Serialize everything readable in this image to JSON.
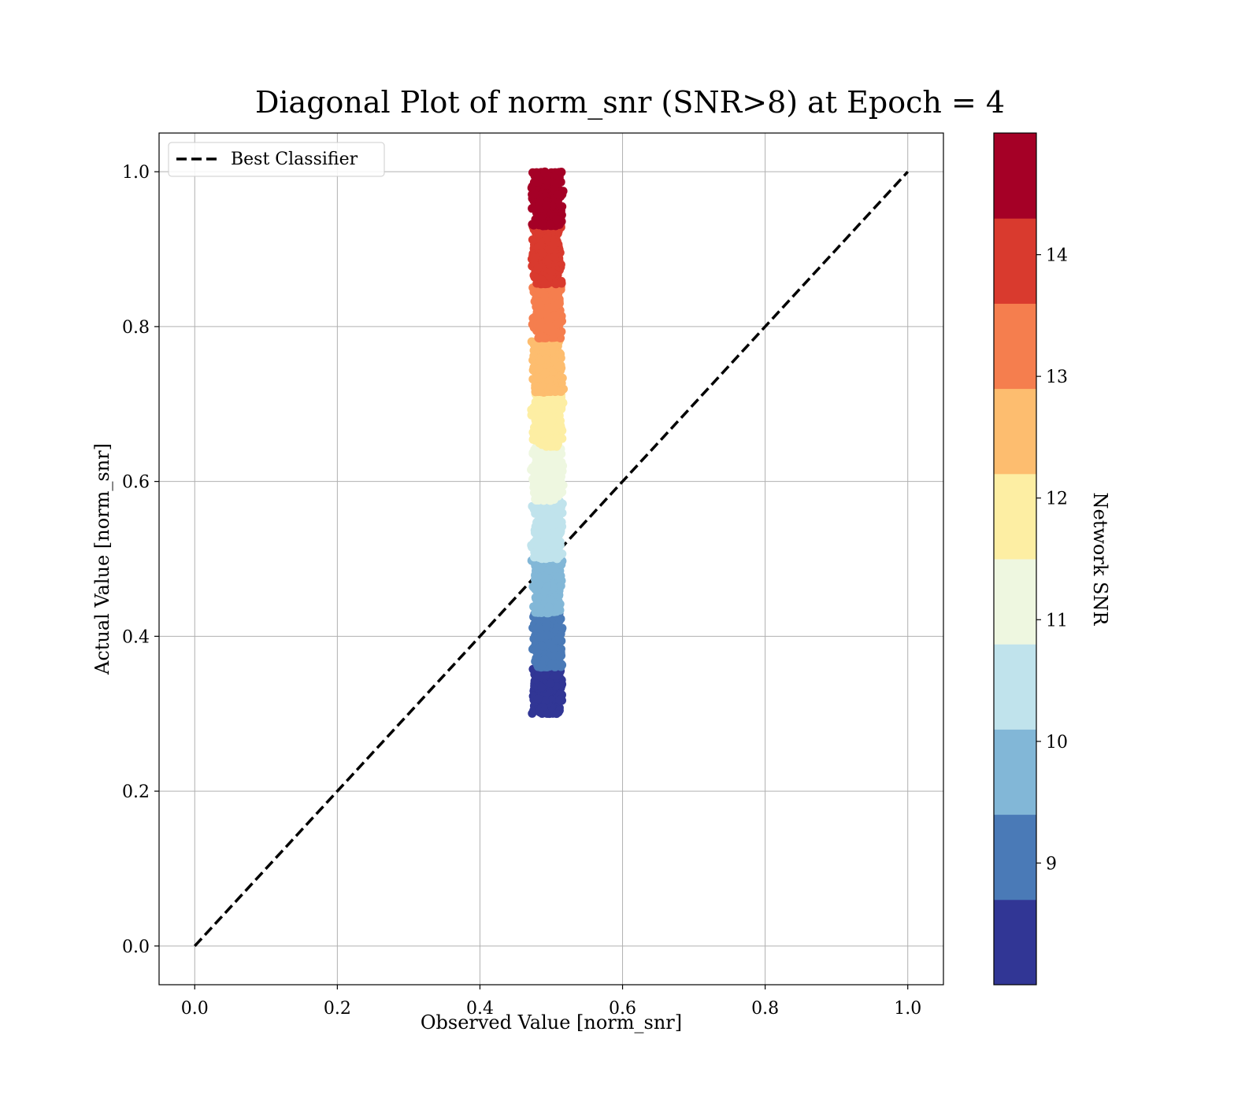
{
  "chart_data": {
    "type": "scatter",
    "title": "Diagonal Plot of norm_snr (SNR>8) at Epoch = 4",
    "xlabel": "Observed Value [norm_snr]",
    "ylabel": "Actual Value [norm_snr]",
    "xlim": [
      -0.05,
      1.05
    ],
    "ylim": [
      -0.05,
      1.05
    ],
    "xticks": [
      0.0,
      0.2,
      0.4,
      0.6,
      0.8,
      1.0
    ],
    "yticks": [
      0.0,
      0.2,
      0.4,
      0.6,
      0.8,
      1.0
    ],
    "xtick_labels": [
      "0.0",
      "0.2",
      "0.4",
      "0.6",
      "0.8",
      "1.0"
    ],
    "ytick_labels": [
      "0.0",
      "0.2",
      "0.4",
      "0.6",
      "0.8",
      "1.0"
    ],
    "grid": true,
    "legend": {
      "position": "upper-left",
      "entries": [
        {
          "label": "Best Classifier",
          "style": "dashed",
          "color": "#000000"
        }
      ]
    },
    "reference_line": {
      "x": [
        0.0,
        1.0
      ],
      "y": [
        0.0,
        1.0
      ],
      "style": "dashed",
      "color": "#000000"
    },
    "colorbar": {
      "label": "Network SNR",
      "range": [
        8.0,
        15.0
      ],
      "ticks": [
        9,
        10,
        11,
        12,
        13,
        14
      ],
      "tick_labels": [
        "9",
        "10",
        "11",
        "12",
        "13",
        "14"
      ],
      "colors": [
        "#313695",
        "#4a7ab7",
        "#82b7d7",
        "#c0e3ec",
        "#eef7e0",
        "#fdeea3",
        "#fdbd6f",
        "#f57e4e",
        "#d93a2e",
        "#a50026"
      ]
    },
    "scatter_summary": {
      "x_range": [
        0.47,
        0.525
      ],
      "y_range": [
        0.3,
        1.0
      ],
      "color_by": "Network SNR",
      "bands": [
        {
          "snr": [
            8.0,
            8.7
          ],
          "y": [
            0.3,
            0.36
          ],
          "color": "#313695"
        },
        {
          "snr": [
            8.7,
            9.4
          ],
          "y": [
            0.36,
            0.43
          ],
          "color": "#4a7ab7"
        },
        {
          "snr": [
            9.4,
            10.1
          ],
          "y": [
            0.43,
            0.5
          ],
          "color": "#82b7d7"
        },
        {
          "snr": [
            10.1,
            10.8
          ],
          "y": [
            0.5,
            0.575
          ],
          "color": "#c0e3ec"
        },
        {
          "snr": [
            10.8,
            11.5
          ],
          "y": [
            0.575,
            0.645
          ],
          "color": "#eef7e0"
        },
        {
          "snr": [
            11.5,
            12.2
          ],
          "y": [
            0.645,
            0.715
          ],
          "color": "#fdeea3"
        },
        {
          "snr": [
            12.2,
            12.9
          ],
          "y": [
            0.715,
            0.785
          ],
          "color": "#fdbd6f"
        },
        {
          "snr": [
            12.9,
            13.6
          ],
          "y": [
            0.785,
            0.855
          ],
          "color": "#f57e4e"
        },
        {
          "snr": [
            13.6,
            14.3
          ],
          "y": [
            0.855,
            0.93
          ],
          "color": "#d93a2e"
        },
        {
          "snr": [
            14.3,
            15.0
          ],
          "y": [
            0.93,
            1.0
          ],
          "color": "#a50026"
        }
      ]
    }
  }
}
